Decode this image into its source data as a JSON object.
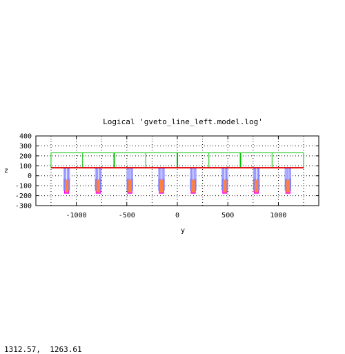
{
  "chart_data": {
    "type": "scatter",
    "title": "Logical 'gveto_line_left.model.log'",
    "xlabel": "y",
    "ylabel": "z",
    "xlim": [
      -1400,
      1400
    ],
    "ylim": [
      -300,
      400
    ],
    "xticks": [
      -1000,
      -500,
      0,
      500,
      1000
    ],
    "yticks": [
      -300,
      -200,
      -100,
      0,
      100,
      200,
      300,
      400
    ],
    "grid": true,
    "grid_style": "dotted",
    "bounding_box": {
      "y_range": [
        -1250,
        1250
      ],
      "z_range": [
        80,
        230
      ]
    },
    "block_boundaries_y": [
      -937.5,
      -625,
      -312.5,
      0,
      312.5,
      625,
      937.5
    ],
    "base_plate_z": 80,
    "module_centers_y": [
      -1095,
      -783,
      -470,
      -157,
      157,
      470,
      783,
      1095
    ],
    "module_z_range": [
      -180,
      80
    ],
    "colors": {
      "frame": "#00c000",
      "plate": "#e00000",
      "module_outer": "#ff00ff",
      "module_inner": "#8080ff",
      "module_core": "#ff8040",
      "axes": "#000000"
    }
  },
  "status": {
    "cursor_readout": "1312.57,  1263.61"
  }
}
